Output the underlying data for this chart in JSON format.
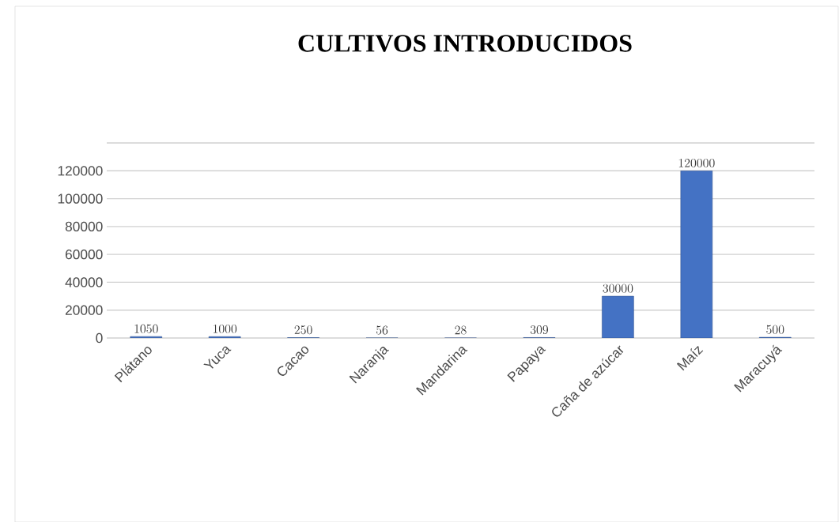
{
  "chart_data": {
    "type": "bar",
    "title": "CULTIVOS INTRODUCIDOS",
    "categories": [
      "Plátano",
      "Yuca",
      "Cacao",
      "Naranja",
      "Mandarina",
      "Papaya",
      "Caña de azúcar",
      "Maíz",
      "Maracuyá"
    ],
    "values": [
      1050,
      1000,
      250,
      56,
      28,
      309,
      30000,
      120000,
      500
    ],
    "color": "#4472c4",
    "ylim": [
      0,
      140000
    ],
    "yticks": [
      0,
      20000,
      40000,
      60000,
      80000,
      100000,
      120000,
      {
        "value": 140000,
        "label": null
      }
    ],
    "grid": "y",
    "data_labels": true
  }
}
